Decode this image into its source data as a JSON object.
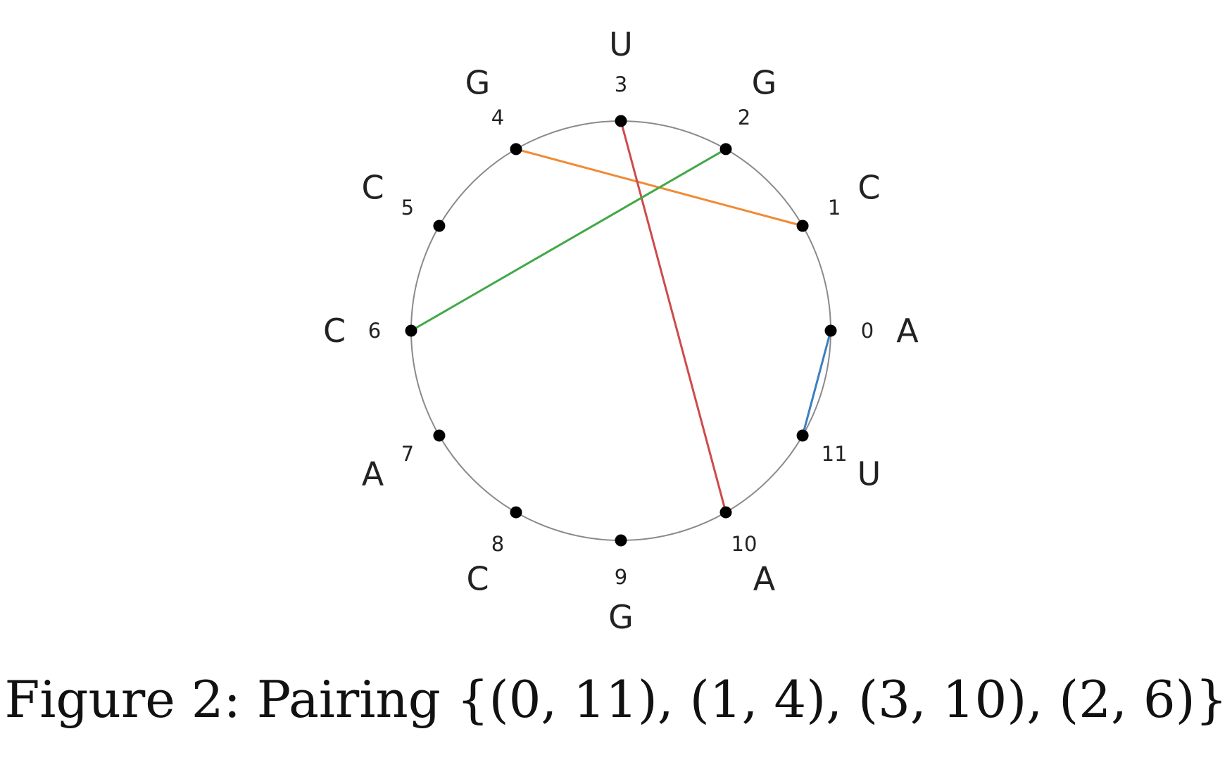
{
  "figure": {
    "caption": "Figure 2: Pairing {(0, 11), (1, 4), (3, 10), (2, 6)}"
  },
  "diagram": {
    "nodes": [
      {
        "index": "0",
        "base": "A"
      },
      {
        "index": "1",
        "base": "C"
      },
      {
        "index": "2",
        "base": "G"
      },
      {
        "index": "3",
        "base": "U"
      },
      {
        "index": "4",
        "base": "G"
      },
      {
        "index": "5",
        "base": "C"
      },
      {
        "index": "6",
        "base": "C"
      },
      {
        "index": "7",
        "base": "A"
      },
      {
        "index": "8",
        "base": "C"
      },
      {
        "index": "9",
        "base": "G"
      },
      {
        "index": "10",
        "base": "A"
      },
      {
        "index": "11",
        "base": "U"
      }
    ],
    "pairs": [
      {
        "from": 0,
        "to": 11,
        "color": "#3d7fbf"
      },
      {
        "from": 1,
        "to": 4,
        "color": "#f08a33"
      },
      {
        "from": 3,
        "to": 10,
        "color": "#cf4a4a"
      },
      {
        "from": 2,
        "to": 6,
        "color": "#43a847"
      }
    ],
    "colors": {
      "circle": "#8a8a8a",
      "node": "#000000",
      "text": "#222222"
    }
  }
}
